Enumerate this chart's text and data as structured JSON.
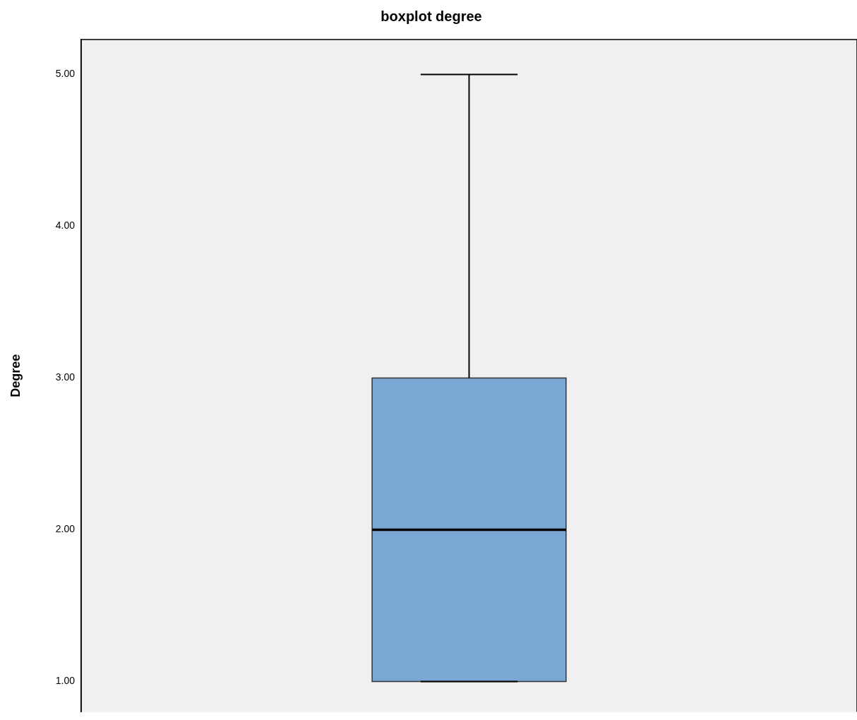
{
  "chart_data": {
    "type": "box",
    "title": "boxplot degree",
    "ylabel": "Degree",
    "categories": [
      null
    ],
    "boxes": [
      {
        "low": 1,
        "q1": 1,
        "median": 2,
        "q3": 3,
        "high": 5
      }
    ],
    "color": "#7ba7d4",
    "ylim": [
      0.8,
      5.23
    ],
    "yticks": [
      {
        "value": 1,
        "label": "1.00"
      },
      {
        "value": 2,
        "label": "2.00"
      },
      {
        "value": 3,
        "label": "3.00"
      },
      {
        "value": 4,
        "label": "4.00"
      },
      {
        "value": 5,
        "label": "5.00"
      }
    ],
    "grid": false,
    "tick_labels": "y"
  }
}
